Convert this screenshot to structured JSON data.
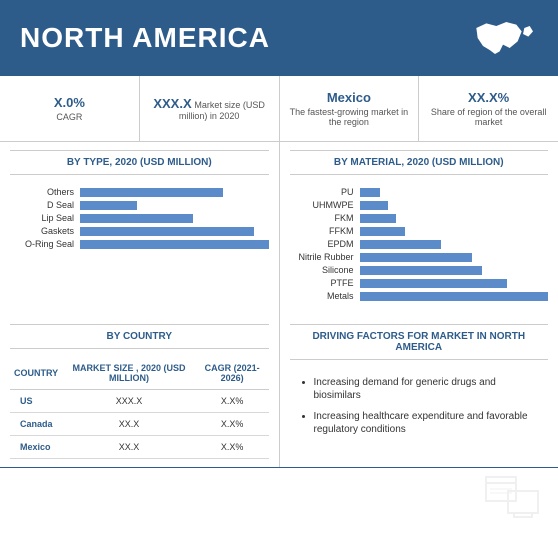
{
  "header": {
    "title": "NORTH AMERICA"
  },
  "kpis": [
    {
      "value": "X.0%",
      "sub": "CAGR"
    },
    {
      "value": "XXX.X",
      "sub": "Market size (USD million) in 2020"
    },
    {
      "value": "Mexico",
      "sub": "The fastest-growing market in the region"
    },
    {
      "value": "XX.X%",
      "sub": "Share of region of the overall market"
    }
  ],
  "type_chart": {
    "title": "BY TYPE, 2020 (USD MILLION)",
    "type": "bar-horizontal",
    "categories": [
      "Others",
      "D Seal",
      "Lip Seal",
      "Gaskets",
      "O-Ring Seal"
    ],
    "values": [
      70,
      28,
      55,
      85,
      92
    ],
    "bar_color": "#5b8bc9",
    "label_fontsize": 9
  },
  "material_chart": {
    "title": "BY MATERIAL, 2020 (USD MILLION)",
    "type": "bar-horizontal",
    "categories": [
      "PU",
      "UHMWPE",
      "FKM",
      "FFKM",
      "EPDM",
      "Nitrile Rubber",
      "Silicone",
      "PTFE",
      "Metals"
    ],
    "values": [
      10,
      14,
      18,
      22,
      40,
      55,
      60,
      72,
      92
    ],
    "bar_color": "#5b8bc9",
    "label_fontsize": 9
  },
  "country_table": {
    "title": "BY COUNTRY",
    "columns": [
      "COUNTRY",
      "MARKET SIZE , 2020 (USD MILLION)",
      "CAGR (2021-2026)"
    ],
    "rows": [
      [
        "US",
        "XXX.X",
        "X.X%"
      ],
      [
        "Canada",
        "XX.X",
        "X.X%"
      ],
      [
        "Mexico",
        "XX.X",
        "X.X%"
      ]
    ]
  },
  "factors": {
    "title": "DRIVING FACTORS FOR MARKET IN NORTH AMERICA",
    "items": [
      "Increasing demand for generic drugs and biosimilars",
      "Increasing healthcare expenditure and favorable regulatory conditions"
    ]
  },
  "colors": {
    "primary": "#2e5c8a",
    "bar": "#5b8bc9",
    "border": "#cccccc",
    "text": "#333333",
    "background": "#ffffff"
  }
}
